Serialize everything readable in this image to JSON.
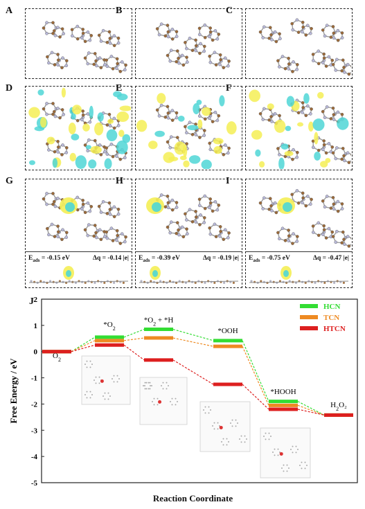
{
  "panels": [
    {
      "label": "A",
      "type": "structure",
      "variant": "hcn"
    },
    {
      "label": "B",
      "type": "structure",
      "variant": "tcn"
    },
    {
      "label": "C",
      "type": "structure",
      "variant": "htcn"
    },
    {
      "label": "D",
      "type": "charge",
      "variant": "hcn"
    },
    {
      "label": "E",
      "type": "charge",
      "variant": "tcn"
    },
    {
      "label": "F",
      "type": "charge",
      "variant": "htcn"
    },
    {
      "label": "G",
      "type": "adsorption",
      "variant": "hcn",
      "eads": "-0.15 eV",
      "dq": "-0.14 |e|"
    },
    {
      "label": "H",
      "type": "adsorption",
      "variant": "tcn",
      "eads": "-0.39 eV",
      "dq": "-0.19 |e|"
    },
    {
      "label": "I",
      "type": "adsorption",
      "variant": "htcn",
      "eads": "-0.75 eV",
      "dq": "-0.47 |e|"
    }
  ],
  "ads_labels": {
    "eads_prefix": "E",
    "eads_sub": "ads",
    "eq": " = ",
    "dq_prefix": "Δq = "
  },
  "chart_label": "J",
  "chart_data": {
    "type": "line",
    "xlabel": "Reaction Coordinate",
    "ylabel": "Free Energy / eV",
    "ylim": [
      -5,
      2
    ],
    "yticks": [
      2,
      1,
      0,
      -1,
      -2,
      -3,
      -4,
      -5
    ],
    "steps": [
      "O2",
      "*O2",
      "*O2 + *H",
      "*OOH",
      "*HOOH",
      "H2O2"
    ],
    "step_labels": [
      {
        "text": "O",
        "sub": "2",
        "extra": ""
      },
      {
        "text": "*O",
        "sub": "2",
        "extra": ""
      },
      {
        "text": "*O",
        "sub": "2",
        "extra": " + *H"
      },
      {
        "text": "*OOH",
        "sub": "",
        "extra": ""
      },
      {
        "text": "*HOOH",
        "sub": "",
        "extra": ""
      },
      {
        "text": "H",
        "sub": "2",
        "extra": "O₂"
      }
    ],
    "series": [
      {
        "name": "HCN",
        "color": "#33dd33",
        "values": [
          0,
          0.55,
          0.85,
          0.42,
          -1.9,
          -2.42
        ]
      },
      {
        "name": "TCN",
        "color": "#ee8a22",
        "values": [
          0,
          0.42,
          0.52,
          0.2,
          -2.05,
          -2.42
        ]
      },
      {
        "name": "HTCN",
        "color": "#dd1f1f",
        "values": [
          0,
          0.25,
          -0.32,
          -1.25,
          -2.2,
          -2.42
        ]
      }
    ],
    "legend_position": "top-right"
  }
}
